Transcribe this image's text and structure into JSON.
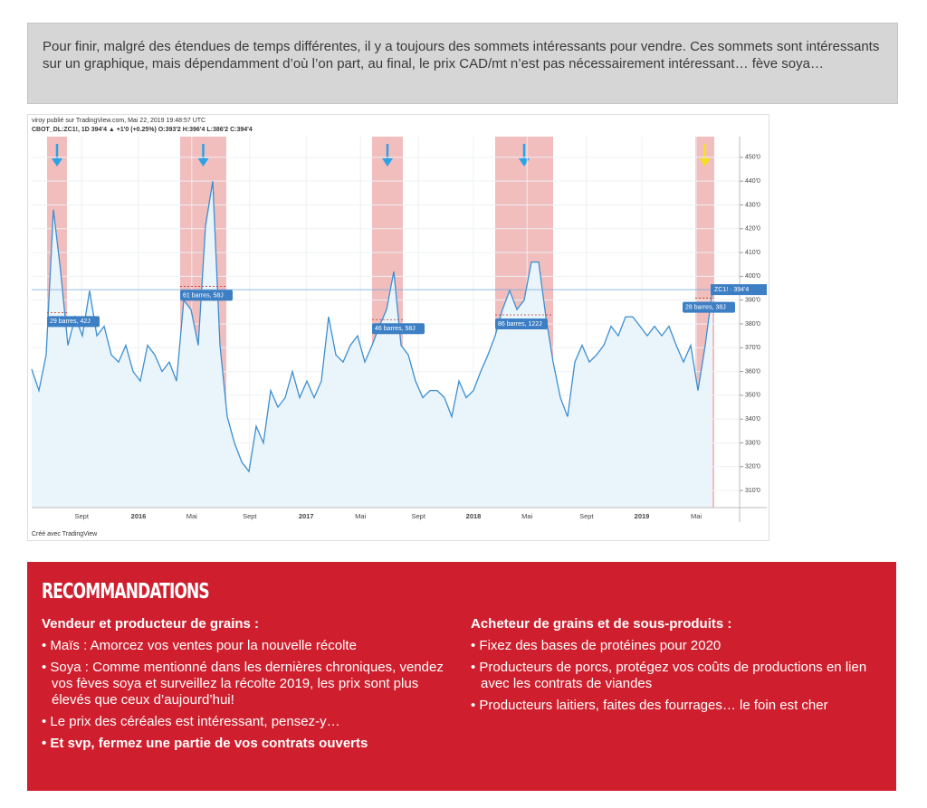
{
  "intro": "Pour finir, malgré des étendues de temps différentes, il y a toujours des sommets intéressants pour vendre. Ces sommets sont intéressants sur un graphique, mais dépendamment d’où l’on part, au final, le prix CAD/mt n’est pas nécessairement intéressant… fève soya…",
  "chart_header": {
    "line1": "viroy publié sur TradingView.com, Mai 22, 2019 19:48:57 UTC",
    "line2": "CBOT_DL:ZC1!, 1D 394'4 ▲ +1'0 (+0.25%) O:393'2 H:396'4 L:386'2 C:394'4",
    "footer": "Créé avec TradingView"
  },
  "chart_data": {
    "type": "line",
    "color": "#3d8fd1",
    "fill": "#eaf4fb",
    "values": [
      361,
      352,
      367,
      428,
      402,
      371,
      383,
      375,
      394,
      375,
      379,
      367,
      364,
      371,
      360,
      356,
      371,
      367,
      360,
      364,
      356,
      390,
      386,
      371,
      421,
      440,
      371,
      341,
      330,
      322,
      318,
      337,
      330,
      352,
      345,
      349,
      360,
      349,
      356,
      349,
      356,
      383,
      367,
      364,
      371,
      375,
      364,
      371,
      379,
      386,
      402,
      371,
      367,
      356,
      349,
      352,
      352,
      349,
      341,
      356,
      349,
      352,
      360,
      367,
      375,
      386,
      394,
      386,
      390,
      406,
      406,
      383,
      364,
      349,
      341,
      364,
      371,
      364,
      367,
      371,
      379,
      375,
      383,
      383,
      379,
      375,
      379,
      375,
      379,
      371,
      364,
      371,
      352,
      371,
      394
    ],
    "xlim": [
      0,
      97.75
    ],
    "ylim": [
      302.8,
      458.7
    ],
    "yticks": [
      {
        "value": 310,
        "label": "310'0"
      },
      {
        "value": 320,
        "label": "320'0"
      },
      {
        "value": 330,
        "label": "330'0"
      },
      {
        "value": 340,
        "label": "340'0"
      },
      {
        "value": 350,
        "label": "350'0"
      },
      {
        "value": 360,
        "label": "360'0"
      },
      {
        "value": 370,
        "label": "370'0"
      },
      {
        "value": 380,
        "label": "380'0"
      },
      {
        "value": 390,
        "label": "390'0"
      },
      {
        "value": 400,
        "label": "400'0"
      },
      {
        "value": 410,
        "label": "410'0"
      },
      {
        "value": 420,
        "label": "420'0"
      },
      {
        "value": 430,
        "label": "430'0"
      },
      {
        "value": 440,
        "label": "440'0"
      },
      {
        "value": 450,
        "label": "450'0"
      }
    ],
    "xticks": [
      {
        "value": 6.9,
        "label": "Sept"
      },
      {
        "value": 14.75,
        "label": "2016"
      },
      {
        "value": 22.1,
        "label": "Mai"
      },
      {
        "value": 30.1,
        "label": "Sept"
      },
      {
        "value": 37.9,
        "label": "2017"
      },
      {
        "value": 45.4,
        "label": "Mai"
      },
      {
        "value": 53.4,
        "label": "Sept"
      },
      {
        "value": 61,
        "label": "2018"
      },
      {
        "value": 68.4,
        "label": "Mai"
      },
      {
        "value": 76.6,
        "label": "Sept"
      },
      {
        "value": 84.25,
        "label": "2019"
      },
      {
        "value": 91.75,
        "label": "Mai"
      }
    ],
    "grid": true,
    "highlight_color": "#eeb1b1",
    "highlights": [
      {
        "range": [
          2.125,
          4.875
        ],
        "label": "29 barres, 42J",
        "arrow_color": "#2aa3e6"
      },
      {
        "range": [
          20.5,
          26.875
        ],
        "label": "61 barres, 58J",
        "arrow_color": "#2aa3e6"
      },
      {
        "range": [
          47,
          51.25
        ],
        "label": "46 barres, 58J",
        "arrow_color": "#2aa3e6"
      },
      {
        "range": [
          64,
          72
        ],
        "label": "86 barres, 122J",
        "arrow_color": "#2aa3e6"
      },
      {
        "range": [
          91.625,
          94.25
        ],
        "label": "28 barres, 38J",
        "arrow_color": "#f5e11b"
      }
    ],
    "last_price": {
      "value": 394.4,
      "label": "ZC1!  ·  394'4"
    }
  },
  "recommendations": {
    "title": "RECOMMANDATIONS",
    "columns": [
      {
        "heading": "Vendeur et producteur de grains :",
        "items": [
          {
            "text": "Maïs : Amorcez vos ventes pour la nouvelle récolte",
            "bold": false
          },
          {
            "text": "Soya : Comme mentionné dans les dernières chroniques, vendez vos fèves soya et surveillez la récolte 2019, les prix sont plus élevés que ceux d’aujourd’hui!",
            "bold": false
          },
          {
            "text": "Le prix des céréales est intéressant, pensez-y…",
            "bold": false
          },
          {
            "text": "Et svp, fermez une partie de vos contrats ouverts",
            "bold": true
          }
        ]
      },
      {
        "heading": "Acheteur de grains et de sous-produits :",
        "items": [
          {
            "text": "Fixez des bases de protéines pour 2020",
            "bold": false
          },
          {
            "text": "Producteurs de porcs, protégez vos coûts de productions en lien avec les contrats de viandes",
            "bold": false
          },
          {
            "text": "Producteurs laitiers, faites des fourrages… le foin est cher",
            "bold": false
          }
        ]
      }
    ]
  }
}
